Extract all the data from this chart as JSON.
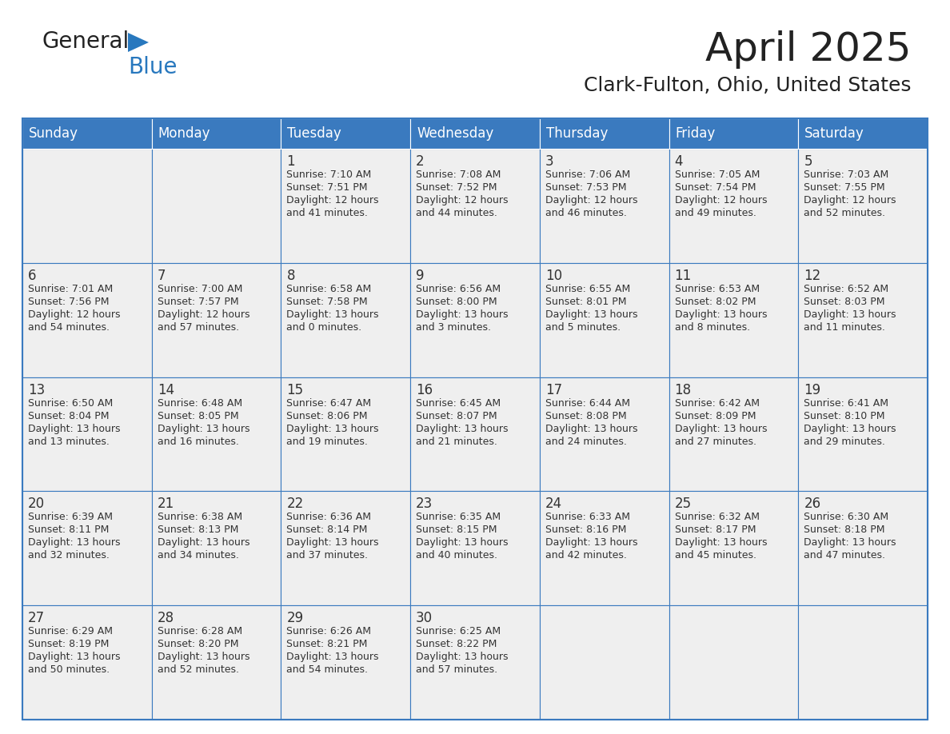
{
  "title": "April 2025",
  "subtitle": "Clark-Fulton, Ohio, United States",
  "header_bg_color": "#3a7abf",
  "header_text_color": "#ffffff",
  "cell_bg_color": "#efefef",
  "border_color": "#3a7abf",
  "text_color": "#333333",
  "days_of_week": [
    "Sunday",
    "Monday",
    "Tuesday",
    "Wednesday",
    "Thursday",
    "Friday",
    "Saturday"
  ],
  "logo_text_color": "#222222",
  "logo_blue_color": "#2878be",
  "title_fontsize": 36,
  "subtitle_fontsize": 18,
  "header_fontsize": 12,
  "day_num_fontsize": 12,
  "cell_text_fontsize": 9,
  "weeks": [
    [
      {
        "day": "",
        "info": ""
      },
      {
        "day": "",
        "info": ""
      },
      {
        "day": "1",
        "info": "Sunrise: 7:10 AM\nSunset: 7:51 PM\nDaylight: 12 hours\nand 41 minutes."
      },
      {
        "day": "2",
        "info": "Sunrise: 7:08 AM\nSunset: 7:52 PM\nDaylight: 12 hours\nand 44 minutes."
      },
      {
        "day": "3",
        "info": "Sunrise: 7:06 AM\nSunset: 7:53 PM\nDaylight: 12 hours\nand 46 minutes."
      },
      {
        "day": "4",
        "info": "Sunrise: 7:05 AM\nSunset: 7:54 PM\nDaylight: 12 hours\nand 49 minutes."
      },
      {
        "day": "5",
        "info": "Sunrise: 7:03 AM\nSunset: 7:55 PM\nDaylight: 12 hours\nand 52 minutes."
      }
    ],
    [
      {
        "day": "6",
        "info": "Sunrise: 7:01 AM\nSunset: 7:56 PM\nDaylight: 12 hours\nand 54 minutes."
      },
      {
        "day": "7",
        "info": "Sunrise: 7:00 AM\nSunset: 7:57 PM\nDaylight: 12 hours\nand 57 minutes."
      },
      {
        "day": "8",
        "info": "Sunrise: 6:58 AM\nSunset: 7:58 PM\nDaylight: 13 hours\nand 0 minutes."
      },
      {
        "day": "9",
        "info": "Sunrise: 6:56 AM\nSunset: 8:00 PM\nDaylight: 13 hours\nand 3 minutes."
      },
      {
        "day": "10",
        "info": "Sunrise: 6:55 AM\nSunset: 8:01 PM\nDaylight: 13 hours\nand 5 minutes."
      },
      {
        "day": "11",
        "info": "Sunrise: 6:53 AM\nSunset: 8:02 PM\nDaylight: 13 hours\nand 8 minutes."
      },
      {
        "day": "12",
        "info": "Sunrise: 6:52 AM\nSunset: 8:03 PM\nDaylight: 13 hours\nand 11 minutes."
      }
    ],
    [
      {
        "day": "13",
        "info": "Sunrise: 6:50 AM\nSunset: 8:04 PM\nDaylight: 13 hours\nand 13 minutes."
      },
      {
        "day": "14",
        "info": "Sunrise: 6:48 AM\nSunset: 8:05 PM\nDaylight: 13 hours\nand 16 minutes."
      },
      {
        "day": "15",
        "info": "Sunrise: 6:47 AM\nSunset: 8:06 PM\nDaylight: 13 hours\nand 19 minutes."
      },
      {
        "day": "16",
        "info": "Sunrise: 6:45 AM\nSunset: 8:07 PM\nDaylight: 13 hours\nand 21 minutes."
      },
      {
        "day": "17",
        "info": "Sunrise: 6:44 AM\nSunset: 8:08 PM\nDaylight: 13 hours\nand 24 minutes."
      },
      {
        "day": "18",
        "info": "Sunrise: 6:42 AM\nSunset: 8:09 PM\nDaylight: 13 hours\nand 27 minutes."
      },
      {
        "day": "19",
        "info": "Sunrise: 6:41 AM\nSunset: 8:10 PM\nDaylight: 13 hours\nand 29 minutes."
      }
    ],
    [
      {
        "day": "20",
        "info": "Sunrise: 6:39 AM\nSunset: 8:11 PM\nDaylight: 13 hours\nand 32 minutes."
      },
      {
        "day": "21",
        "info": "Sunrise: 6:38 AM\nSunset: 8:13 PM\nDaylight: 13 hours\nand 34 minutes."
      },
      {
        "day": "22",
        "info": "Sunrise: 6:36 AM\nSunset: 8:14 PM\nDaylight: 13 hours\nand 37 minutes."
      },
      {
        "day": "23",
        "info": "Sunrise: 6:35 AM\nSunset: 8:15 PM\nDaylight: 13 hours\nand 40 minutes."
      },
      {
        "day": "24",
        "info": "Sunrise: 6:33 AM\nSunset: 8:16 PM\nDaylight: 13 hours\nand 42 minutes."
      },
      {
        "day": "25",
        "info": "Sunrise: 6:32 AM\nSunset: 8:17 PM\nDaylight: 13 hours\nand 45 minutes."
      },
      {
        "day": "26",
        "info": "Sunrise: 6:30 AM\nSunset: 8:18 PM\nDaylight: 13 hours\nand 47 minutes."
      }
    ],
    [
      {
        "day": "27",
        "info": "Sunrise: 6:29 AM\nSunset: 8:19 PM\nDaylight: 13 hours\nand 50 minutes."
      },
      {
        "day": "28",
        "info": "Sunrise: 6:28 AM\nSunset: 8:20 PM\nDaylight: 13 hours\nand 52 minutes."
      },
      {
        "day": "29",
        "info": "Sunrise: 6:26 AM\nSunset: 8:21 PM\nDaylight: 13 hours\nand 54 minutes."
      },
      {
        "day": "30",
        "info": "Sunrise: 6:25 AM\nSunset: 8:22 PM\nDaylight: 13 hours\nand 57 minutes."
      },
      {
        "day": "",
        "info": ""
      },
      {
        "day": "",
        "info": ""
      },
      {
        "day": "",
        "info": ""
      }
    ]
  ]
}
